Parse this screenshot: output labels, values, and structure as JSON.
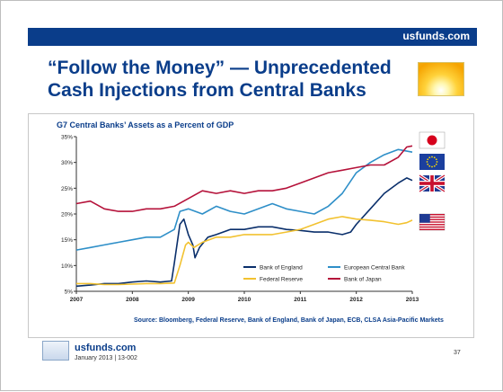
{
  "header": {
    "brand": "usfunds.com"
  },
  "slide_title": {
    "line1": "“Follow the Money” — Unprecedented",
    "line2": "Cash Injections from Central Banks"
  },
  "source": "Source: Bloomberg, Federal Reserve, Bank of England, Bank of Japan, ECB, CLSA Asia-Pacific Markets",
  "footer": {
    "brand": "usfunds.com",
    "date": "January 2013 | 13-002",
    "page": "37"
  },
  "colors": {
    "header_bar": "#0a3d8a",
    "title_text": "#0a3d8a"
  },
  "chart_data": {
    "type": "line",
    "title": "G7 Central Banks’ Assets as a Percent of GDP",
    "xlabel": "",
    "ylabel": "",
    "x_ticks": [
      "2007",
      "2008",
      "2009",
      "2010",
      "2011",
      "2012",
      "2013"
    ],
    "y_ticks": [
      "5%",
      "10%",
      "15%",
      "20%",
      "25%",
      "30%",
      "35%"
    ],
    "xlim": [
      2007,
      2013
    ],
    "ylim": [
      5,
      35
    ],
    "grid": false,
    "legend": "bottom-center",
    "flags": [
      {
        "icon": "japan-flag-icon",
        "series": "Bank of Japan"
      },
      {
        "icon": "eu-flag-icon",
        "series": "European Central Bank"
      },
      {
        "icon": "uk-flag-icon",
        "series": "Bank of England"
      },
      {
        "icon": "us-flag-icon",
        "series": "Federal Reserve"
      }
    ],
    "series": [
      {
        "name": "Bank of England",
        "color": "#0a2f6b",
        "points": [
          [
            2007.0,
            6.0
          ],
          [
            2007.25,
            6.2
          ],
          [
            2007.5,
            6.5
          ],
          [
            2007.75,
            6.5
          ],
          [
            2008.0,
            6.8
          ],
          [
            2008.25,
            7.0
          ],
          [
            2008.5,
            6.8
          ],
          [
            2008.7,
            7.0
          ],
          [
            2008.75,
            10.5
          ],
          [
            2008.85,
            18.0
          ],
          [
            2008.92,
            19.0
          ],
          [
            2009.0,
            16.0
          ],
          [
            2009.08,
            14.0
          ],
          [
            2009.12,
            11.5
          ],
          [
            2009.2,
            13.5
          ],
          [
            2009.35,
            15.5
          ],
          [
            2009.5,
            16.0
          ],
          [
            2009.75,
            17.0
          ],
          [
            2010.0,
            17.0
          ],
          [
            2010.25,
            17.5
          ],
          [
            2010.5,
            17.5
          ],
          [
            2010.75,
            17.0
          ],
          [
            2011.0,
            16.8
          ],
          [
            2011.25,
            16.5
          ],
          [
            2011.5,
            16.5
          ],
          [
            2011.75,
            16.0
          ],
          [
            2011.9,
            16.5
          ],
          [
            2012.0,
            18.0
          ],
          [
            2012.25,
            21.0
          ],
          [
            2012.5,
            24.0
          ],
          [
            2012.75,
            26.0
          ],
          [
            2012.9,
            27.0
          ],
          [
            2013.0,
            26.5
          ]
        ]
      },
      {
        "name": "European Central Bank",
        "color": "#2e8fc8",
        "points": [
          [
            2007.0,
            13.0
          ],
          [
            2007.25,
            13.5
          ],
          [
            2007.5,
            14.0
          ],
          [
            2007.75,
            14.5
          ],
          [
            2008.0,
            15.0
          ],
          [
            2008.25,
            15.5
          ],
          [
            2008.5,
            15.5
          ],
          [
            2008.75,
            17.0
          ],
          [
            2008.85,
            20.5
          ],
          [
            2009.0,
            21.0
          ],
          [
            2009.25,
            20.0
          ],
          [
            2009.5,
            21.5
          ],
          [
            2009.75,
            20.5
          ],
          [
            2010.0,
            20.0
          ],
          [
            2010.25,
            21.0
          ],
          [
            2010.5,
            22.0
          ],
          [
            2010.75,
            21.0
          ],
          [
            2011.0,
            20.5
          ],
          [
            2011.25,
            20.0
          ],
          [
            2011.5,
            21.5
          ],
          [
            2011.75,
            24.0
          ],
          [
            2012.0,
            28.0
          ],
          [
            2012.25,
            30.0
          ],
          [
            2012.5,
            31.5
          ],
          [
            2012.75,
            32.5
          ],
          [
            2013.0,
            32.0
          ]
        ]
      },
      {
        "name": "Federal Reserve",
        "color": "#f2c230",
        "points": [
          [
            2007.0,
            6.5
          ],
          [
            2007.25,
            6.5
          ],
          [
            2007.5,
            6.3
          ],
          [
            2007.75,
            6.3
          ],
          [
            2008.0,
            6.4
          ],
          [
            2008.25,
            6.5
          ],
          [
            2008.5,
            6.5
          ],
          [
            2008.75,
            6.6
          ],
          [
            2008.85,
            10.0
          ],
          [
            2008.95,
            14.0
          ],
          [
            2009.0,
            14.5
          ],
          [
            2009.1,
            13.5
          ],
          [
            2009.25,
            14.5
          ],
          [
            2009.5,
            15.5
          ],
          [
            2009.75,
            15.5
          ],
          [
            2010.0,
            16.0
          ],
          [
            2010.25,
            16.0
          ],
          [
            2010.5,
            16.0
          ],
          [
            2010.75,
            16.5
          ],
          [
            2011.0,
            17.0
          ],
          [
            2011.25,
            18.0
          ],
          [
            2011.5,
            19.0
          ],
          [
            2011.75,
            19.5
          ],
          [
            2012.0,
            19.0
          ],
          [
            2012.25,
            18.8
          ],
          [
            2012.5,
            18.5
          ],
          [
            2012.75,
            18.0
          ],
          [
            2012.9,
            18.3
          ],
          [
            2013.0,
            18.8
          ]
        ]
      },
      {
        "name": "Bank of Japan",
        "color": "#b5123a",
        "points": [
          [
            2007.0,
            22.0
          ],
          [
            2007.25,
            22.5
          ],
          [
            2007.5,
            21.0
          ],
          [
            2007.75,
            20.5
          ],
          [
            2008.0,
            20.5
          ],
          [
            2008.25,
            21.0
          ],
          [
            2008.5,
            21.0
          ],
          [
            2008.75,
            21.5
          ],
          [
            2009.0,
            23.0
          ],
          [
            2009.25,
            24.5
          ],
          [
            2009.5,
            24.0
          ],
          [
            2009.75,
            24.5
          ],
          [
            2010.0,
            24.0
          ],
          [
            2010.25,
            24.5
          ],
          [
            2010.5,
            24.5
          ],
          [
            2010.75,
            25.0
          ],
          [
            2011.0,
            26.0
          ],
          [
            2011.25,
            27.0
          ],
          [
            2011.5,
            28.0
          ],
          [
            2011.75,
            28.5
          ],
          [
            2012.0,
            29.0
          ],
          [
            2012.25,
            29.5
          ],
          [
            2012.5,
            29.5
          ],
          [
            2012.75,
            31.0
          ],
          [
            2012.9,
            33.0
          ],
          [
            2013.0,
            33.2
          ]
        ]
      }
    ]
  }
}
